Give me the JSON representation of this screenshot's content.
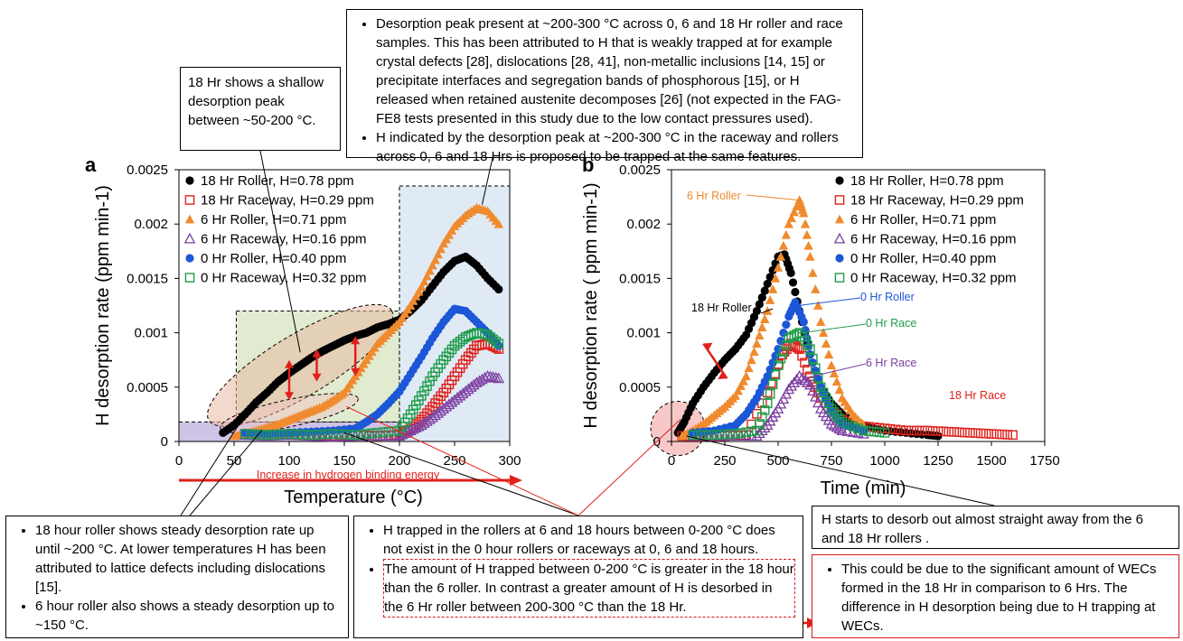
{
  "chart_data": [
    {
      "panel_label": "a",
      "type": "scatter",
      "xlabel": "Temperature (°C)",
      "ylabel": "H desorption rate  (ppm min-1)",
      "xlim": [
        0,
        300
      ],
      "ylim": [
        0,
        0.0025
      ],
      "xticks": [
        0,
        50,
        100,
        150,
        200,
        250,
        300
      ],
      "yticks": [
        0,
        0.0005,
        0.001,
        0.0015,
        0.002,
        0.0025
      ],
      "xtick_labels": [
        "0",
        "50",
        "100",
        "150",
        "200",
        "250",
        "300"
      ],
      "ytick_labels": [
        "0",
        "0.0005",
        "0.001",
        "0.0015",
        "0.002",
        "0.0025"
      ],
      "legend_position": "top-left",
      "grid": false,
      "arrow_label": "Increase in hydrogen binding energy",
      "series": [
        {
          "name": "18 Hr Roller, H=0.78 ppm",
          "marker": "circle-filled",
          "color": "#000000",
          "x": [
            40,
            50,
            60,
            70,
            80,
            90,
            100,
            110,
            120,
            130,
            140,
            150,
            160,
            170,
            180,
            190,
            200,
            210,
            220,
            230,
            240,
            250,
            260,
            270,
            280,
            290
          ],
          "y": [
            8e-05,
            0.00015,
            0.00025,
            0.00036,
            0.00045,
            0.00055,
            0.00063,
            0.0007,
            0.00077,
            0.00083,
            0.00088,
            0.00093,
            0.00097,
            0.001,
            0.00105,
            0.00108,
            0.00112,
            0.0012,
            0.0013,
            0.00143,
            0.00156,
            0.00166,
            0.0017,
            0.00162,
            0.0015,
            0.0014
          ]
        },
        {
          "name": "18 Hr Raceway, H=0.29 ppm",
          "marker": "square-open",
          "color": "#e0201b",
          "x": [
            60,
            80,
            100,
            120,
            140,
            160,
            180,
            200,
            210,
            220,
            230,
            240,
            250,
            260,
            270,
            280,
            290
          ],
          "y": [
            7e-05,
            6e-05,
            7e-05,
            6e-05,
            5e-05,
            6e-05,
            5e-05,
            6e-05,
            0.00012,
            0.0002,
            0.00032,
            0.00045,
            0.0006,
            0.00075,
            0.00088,
            0.0009,
            0.00085
          ]
        },
        {
          "name": "6 Hr Roller, H=0.71 ppm",
          "marker": "triangle-filled",
          "color": "#f08a2e",
          "x": [
            50,
            60,
            70,
            80,
            90,
            100,
            110,
            120,
            130,
            140,
            150,
            160,
            170,
            180,
            190,
            200,
            210,
            220,
            230,
            240,
            250,
            260,
            270,
            280,
            290
          ],
          "y": [
            5e-05,
            7e-05,
            0.0001,
            0.00013,
            0.00016,
            0.0002,
            0.00024,
            0.00028,
            0.00032,
            0.00038,
            0.00045,
            0.0006,
            0.00075,
            0.0009,
            0.001,
            0.0011,
            0.00125,
            0.00142,
            0.00162,
            0.00182,
            0.00198,
            0.00208,
            0.00215,
            0.00212,
            0.002
          ]
        },
        {
          "name": "6 Hr Raceway, H=0.16 ppm",
          "marker": "triangle-open",
          "color": "#7b3fa0",
          "x": [
            60,
            80,
            100,
            120,
            140,
            160,
            180,
            200,
            210,
            220,
            230,
            240,
            250,
            260,
            270,
            280,
            290
          ],
          "y": [
            6e-05,
            5e-05,
            6e-05,
            5e-05,
            4e-05,
            5e-05,
            5e-05,
            5e-05,
            0.0001,
            0.00015,
            0.00022,
            0.0003,
            0.00038,
            0.00046,
            0.00054,
            0.0006,
            0.00058
          ]
        },
        {
          "name": "0 Hr Roller, H=0.40 ppm",
          "marker": "circle-filled",
          "color": "#1c57d8",
          "x": [
            60,
            80,
            100,
            120,
            140,
            160,
            170,
            180,
            190,
            200,
            210,
            220,
            230,
            240,
            250,
            260,
            270,
            280,
            290
          ],
          "y": [
            8e-05,
            7e-05,
            8e-05,
            9e-05,
            0.0001,
            0.00012,
            0.00018,
            0.00025,
            0.00035,
            0.00046,
            0.00062,
            0.00078,
            0.00095,
            0.0011,
            0.00122,
            0.0012,
            0.0011,
            0.001,
            0.00088
          ]
        },
        {
          "name": "0 Hr Raceway, H=0.32 ppm",
          "marker": "square-open",
          "color": "#1f9c4a",
          "x": [
            60,
            80,
            100,
            120,
            140,
            160,
            180,
            200,
            210,
            220,
            230,
            240,
            250,
            260,
            270,
            280,
            290
          ],
          "y": [
            7e-05,
            6e-05,
            7e-05,
            6e-05,
            7e-05,
            6e-05,
            8e-05,
            0.0001,
            0.00025,
            0.00042,
            0.0006,
            0.00075,
            0.00088,
            0.00096,
            0.001,
            0.00098,
            0.0009
          ]
        }
      ]
    },
    {
      "panel_label": "b",
      "type": "scatter",
      "xlabel": "Time (min)",
      "ylabel": "H desorption rate ( ppm min-1)",
      "xlim": [
        0,
        1750
      ],
      "ylim": [
        0,
        0.0025
      ],
      "xticks": [
        0,
        250,
        500,
        750,
        1000,
        1250,
        1500,
        1750
      ],
      "yticks": [
        0,
        0.0005,
        0.001,
        0.0015,
        0.002,
        0.0025
      ],
      "xtick_labels": [
        "0",
        "250",
        "500",
        "750",
        "1000",
        "1250",
        "1500",
        "1750"
      ],
      "ytick_labels": [
        "0",
        "0.0005",
        "0.001",
        "0.0015",
        "0.002",
        "0.0025"
      ],
      "legend_position": "top-right",
      "grid": false,
      "annotations": [
        "6 Hr Roller",
        "18 Hr Roller",
        "0 Hr Roller",
        "0 Hr Race",
        "6 Hr Race",
        "18 Hr Race"
      ],
      "series": [
        {
          "name": "18 Hr Roller, H=0.78 ppm",
          "marker": "circle-filled",
          "color": "#000000",
          "x": [
            30,
            60,
            100,
            150,
            200,
            250,
            300,
            350,
            400,
            450,
            500,
            530,
            560,
            600,
            650,
            700,
            750,
            800,
            850,
            900,
            1000,
            1100,
            1200,
            1250
          ],
          "y": [
            8e-05,
            0.00018,
            0.00035,
            0.0005,
            0.00063,
            0.00075,
            0.00085,
            0.00098,
            0.0012,
            0.00145,
            0.0017,
            0.00172,
            0.00155,
            0.0012,
            0.0008,
            0.0005,
            0.00035,
            0.00025,
            0.00018,
            0.00014,
            0.0001,
            8e-05,
            6e-05,
            5e-05
          ]
        },
        {
          "name": "18 Hr Raceway, H=0.29 ppm",
          "marker": "square-open",
          "color": "#e0201b",
          "x": [
            50,
            150,
            250,
            350,
            450,
            520,
            560,
            600,
            650,
            700,
            800,
            900,
            1000,
            1100,
            1200,
            1300,
            1400,
            1500,
            1600
          ],
          "y": [
            5e-05,
            5e-05,
            5e-05,
            6e-05,
            0.00045,
            0.0008,
            0.0009,
            0.00085,
            0.0006,
            0.0004,
            0.0002,
            0.00014,
            0.00012,
            0.0001,
            0.0001,
            9e-05,
            8e-05,
            7e-05,
            6e-05
          ]
        },
        {
          "name": "6 Hr Roller, H=0.71 ppm",
          "marker": "triangle-filled",
          "color": "#f08a2e",
          "x": [
            50,
            100,
            150,
            200,
            250,
            300,
            350,
            400,
            450,
            500,
            550,
            600,
            620,
            650,
            700,
            750,
            800,
            850,
            900
          ],
          "y": [
            5e-05,
            0.0001,
            0.00016,
            0.00024,
            0.00032,
            0.00042,
            0.0006,
            0.0009,
            0.0012,
            0.0016,
            0.002,
            0.00222,
            0.0021,
            0.0017,
            0.0011,
            0.0007,
            0.0004,
            0.00025,
            0.00015
          ]
        },
        {
          "name": "6 Hr Raceway, H=0.16 ppm",
          "marker": "triangle-open",
          "color": "#7b3fa0",
          "x": [
            100,
            200,
            300,
            400,
            450,
            500,
            550,
            600,
            650,
            700,
            750,
            800,
            900
          ],
          "y": [
            5e-05,
            5e-05,
            5e-05,
            5e-05,
            0.00015,
            0.0003,
            0.00048,
            0.0006,
            0.00052,
            0.0003,
            0.00016,
            0.0001,
            7e-05
          ]
        },
        {
          "name": "0 Hr Roller, H=0.40 ppm",
          "marker": "circle-filled",
          "color": "#1c57d8",
          "x": [
            100,
            200,
            300,
            350,
            400,
            450,
            500,
            550,
            580,
            620,
            650,
            700,
            750,
            800,
            900
          ],
          "y": [
            8e-05,
            0.0001,
            0.00015,
            0.00025,
            0.0004,
            0.0006,
            0.00085,
            0.00115,
            0.00128,
            0.0011,
            0.0008,
            0.0005,
            0.00028,
            0.00016,
            0.0001
          ]
        },
        {
          "name": "0 Hr Raceway, H=0.32 ppm",
          "marker": "square-open",
          "color": "#1f9c4a",
          "x": [
            100,
            200,
            300,
            400,
            450,
            500,
            550,
            600,
            650,
            700,
            750,
            800,
            900,
            1000
          ],
          "y": [
            6e-05,
            6e-05,
            7e-05,
            0.0001,
            0.00035,
            0.0007,
            0.00095,
            0.001,
            0.00085,
            0.0005,
            0.0003,
            0.00018,
            0.0001,
            8e-05
          ]
        }
      ]
    }
  ],
  "callouts": {
    "top": {
      "items": [
        "Desorption peak present at ~200-300 °C across 0, 6 and 18 Hr roller and race samples. This has been attributed to H that is weakly trapped at for example crystal defects [28], dislocations [28, 41], non-metallic inclusions [14, 15] or precipitate interfaces and segregation bands of phosphorous [15], or H released when retained austenite decomposes [26] (not expected in the FAG-FE8 tests presented in this study due to the low contact pressures used).",
        "H indicated by the desorption peak at ~200-300 °C in the raceway and rollers across 0, 6 and 18 Hrs is proposed to be trapped at the same features."
      ]
    },
    "shallow_peak": "18 Hr shows a shallow desorption peak between ~50-200 °C.",
    "bottom_left": {
      "items": [
        "18 hour roller shows steady desorption rate up until ~200 °C. At lower temperatures H has been attributed to lattice defects including dislocations [15].",
        "6 hour roller also shows a steady desorption up to ~150 °C."
      ]
    },
    "bottom_middle": {
      "items": [
        "H trapped in the rollers at 6 and 18 hours between 0-200 °C does not exist in the 0 hour rollers or raceways at 0, 6 and 18 hours.",
        "The amount of H trapped between 0-200 °C is greater in the 18 hour than the 6 roller. In contrast a greater amount of H is desorbed in the 6 Hr roller between 200-300 °C than the 18 Hr."
      ]
    },
    "bottom_right_top": "H starts to desorb out almost straight away from the 6 and 18 Hr rollers .",
    "bottom_right": {
      "items": [
        "This could be due to the significant amount of WECs formed in the 18 Hr in comparison to 6 Hrs. The difference in H desorption being due to H trapping at WECs."
      ]
    }
  }
}
